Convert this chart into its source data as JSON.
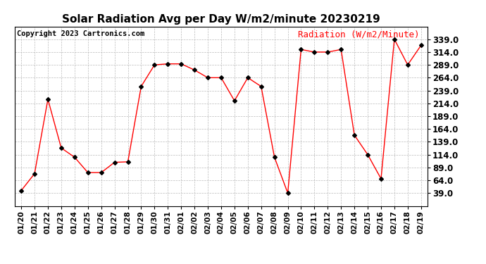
{
  "title": "Solar Radiation Avg per Day W/m2/minute 20230219",
  "copyright": "Copyright 2023 Cartronics.com",
  "legend_label": "Radiation (W/m2/Minute)",
  "dates": [
    "01/20",
    "01/21",
    "01/22",
    "01/23",
    "01/24",
    "01/25",
    "01/26",
    "01/27",
    "01/28",
    "01/29",
    "01/30",
    "01/31",
    "02/01",
    "02/02",
    "02/03",
    "02/04",
    "02/05",
    "02/06",
    "02/07",
    "02/08",
    "02/09",
    "02/10",
    "02/11",
    "02/12",
    "02/13",
    "02/14",
    "02/15",
    "02/16",
    "02/17",
    "02/18",
    "02/19"
  ],
  "values": [
    44,
    77,
    222,
    127,
    109,
    79,
    79,
    99,
    100,
    247,
    289,
    291,
    291,
    279,
    264,
    264,
    219,
    264,
    247,
    109,
    39,
    319,
    314,
    314,
    319,
    152,
    114,
    67,
    339,
    289,
    327
  ],
  "line_color": "#ff0000",
  "marker_color": "#000000",
  "background_color": "#ffffff",
  "grid_color": "#bbbbbb",
  "ylim": [
    14,
    364
  ],
  "yticks": [
    39.0,
    64.0,
    89.0,
    114.0,
    139.0,
    164.0,
    189.0,
    214.0,
    239.0,
    264.0,
    289.0,
    314.0,
    339.0
  ],
  "title_fontsize": 11,
  "copyright_fontsize": 7.5,
  "legend_fontsize": 9,
  "tick_fontsize": 7.5,
  "ytick_fontsize": 8.5
}
